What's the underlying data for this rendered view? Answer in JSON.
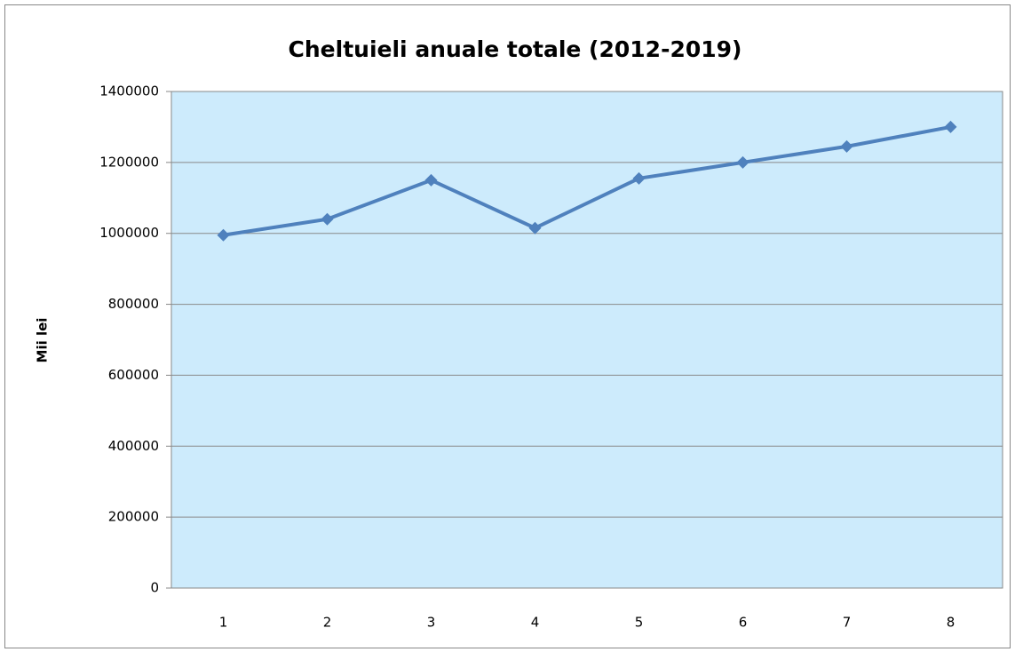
{
  "chart_data": {
    "type": "line",
    "title": "Cheltuieli anuale totale (2012-2019)",
    "y_label": "Mii lei",
    "categories": [
      "1",
      "2",
      "3",
      "4",
      "5",
      "6",
      "7",
      "8"
    ],
    "series": [
      {
        "name": "Cheltuieli",
        "color": "#4f81bd",
        "values": [
          995000,
          1040000,
          1150000,
          1015000,
          1155000,
          1200000,
          1245000,
          1300000
        ]
      }
    ],
    "ylim": [
      0,
      1400000
    ],
    "yticks": [
      0,
      200000,
      400000,
      600000,
      800000,
      1000000,
      1200000,
      1400000
    ],
    "grid": true
  }
}
